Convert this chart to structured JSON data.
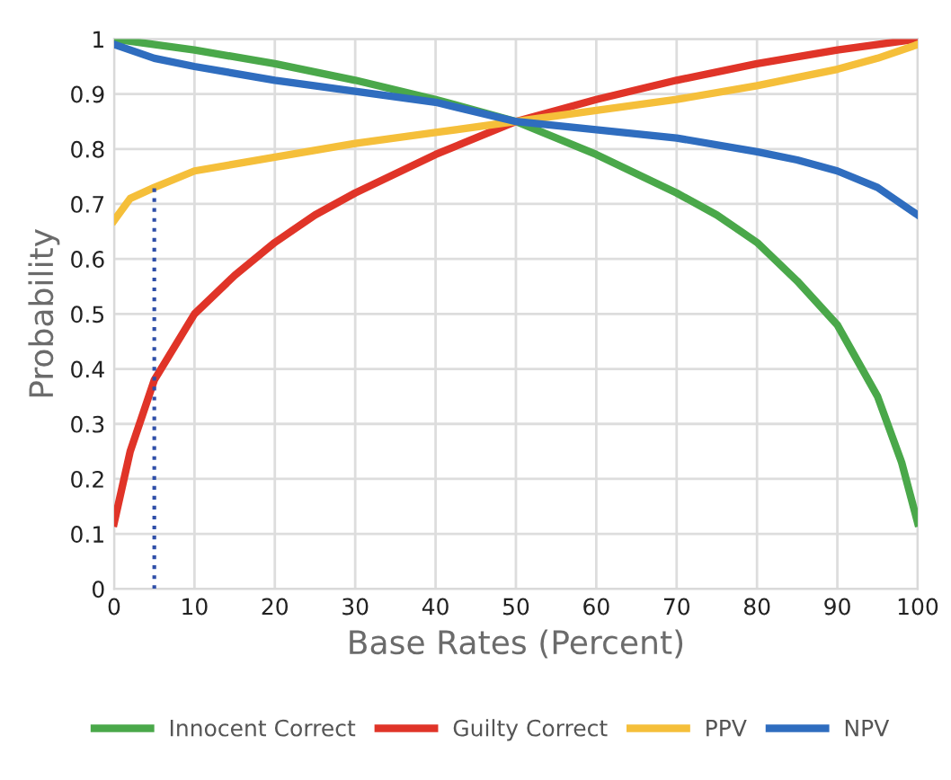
{
  "chart_data": {
    "type": "line",
    "xlabel": "Base Rates (Percent)",
    "ylabel": "Probability",
    "xlim": [
      0,
      100
    ],
    "xticks": [
      0,
      10,
      20,
      30,
      40,
      50,
      60,
      70,
      80,
      90,
      100
    ],
    "ylim": [
      0,
      1
    ],
    "yticks": [
      0,
      0.1,
      0.2,
      0.3,
      0.4,
      0.5,
      0.6,
      0.7,
      0.8,
      0.9,
      1
    ],
    "grid": true,
    "legend": "bottom",
    "marker": "none",
    "line_style": "solid",
    "series": [
      {
        "name": "Innocent Correct",
        "color": "#4aa84a",
        "x": [
          0,
          10,
          20,
          30,
          40,
          50,
          60,
          70,
          75,
          80,
          85,
          90,
          95,
          98,
          100
        ],
        "values": [
          1.0,
          0.98,
          0.955,
          0.925,
          0.89,
          0.85,
          0.79,
          0.72,
          0.68,
          0.63,
          0.56,
          0.48,
          0.35,
          0.23,
          0.12
        ]
      },
      {
        "name": "Guilty Correct",
        "color": "#e03428",
        "x": [
          0,
          2,
          5,
          10,
          15,
          20,
          25,
          30,
          40,
          50,
          60,
          70,
          80,
          90,
          100
        ],
        "values": [
          0.12,
          0.25,
          0.38,
          0.5,
          0.57,
          0.63,
          0.68,
          0.72,
          0.79,
          0.85,
          0.89,
          0.925,
          0.955,
          0.98,
          1.0
        ]
      },
      {
        "name": "PPV",
        "color": "#f5bf3a",
        "x": [
          0,
          2,
          5,
          10,
          20,
          30,
          40,
          50,
          60,
          70,
          80,
          90,
          95,
          100
        ],
        "values": [
          0.67,
          0.71,
          0.73,
          0.76,
          0.785,
          0.81,
          0.83,
          0.85,
          0.87,
          0.89,
          0.915,
          0.945,
          0.965,
          0.99
        ]
      },
      {
        "name": "NPV",
        "color": "#2f6dbf",
        "x": [
          0,
          5,
          10,
          20,
          30,
          40,
          50,
          60,
          70,
          80,
          85,
          90,
          95,
          97,
          100
        ],
        "values": [
          0.99,
          0.965,
          0.95,
          0.925,
          0.905,
          0.885,
          0.85,
          0.835,
          0.82,
          0.795,
          0.78,
          0.76,
          0.73,
          0.71,
          0.68
        ]
      },
      {
        "color": "#2f4fa8",
        "line_style": "dotted",
        "x": [
          5,
          5
        ],
        "values": [
          0,
          0.73
        ]
      }
    ]
  }
}
